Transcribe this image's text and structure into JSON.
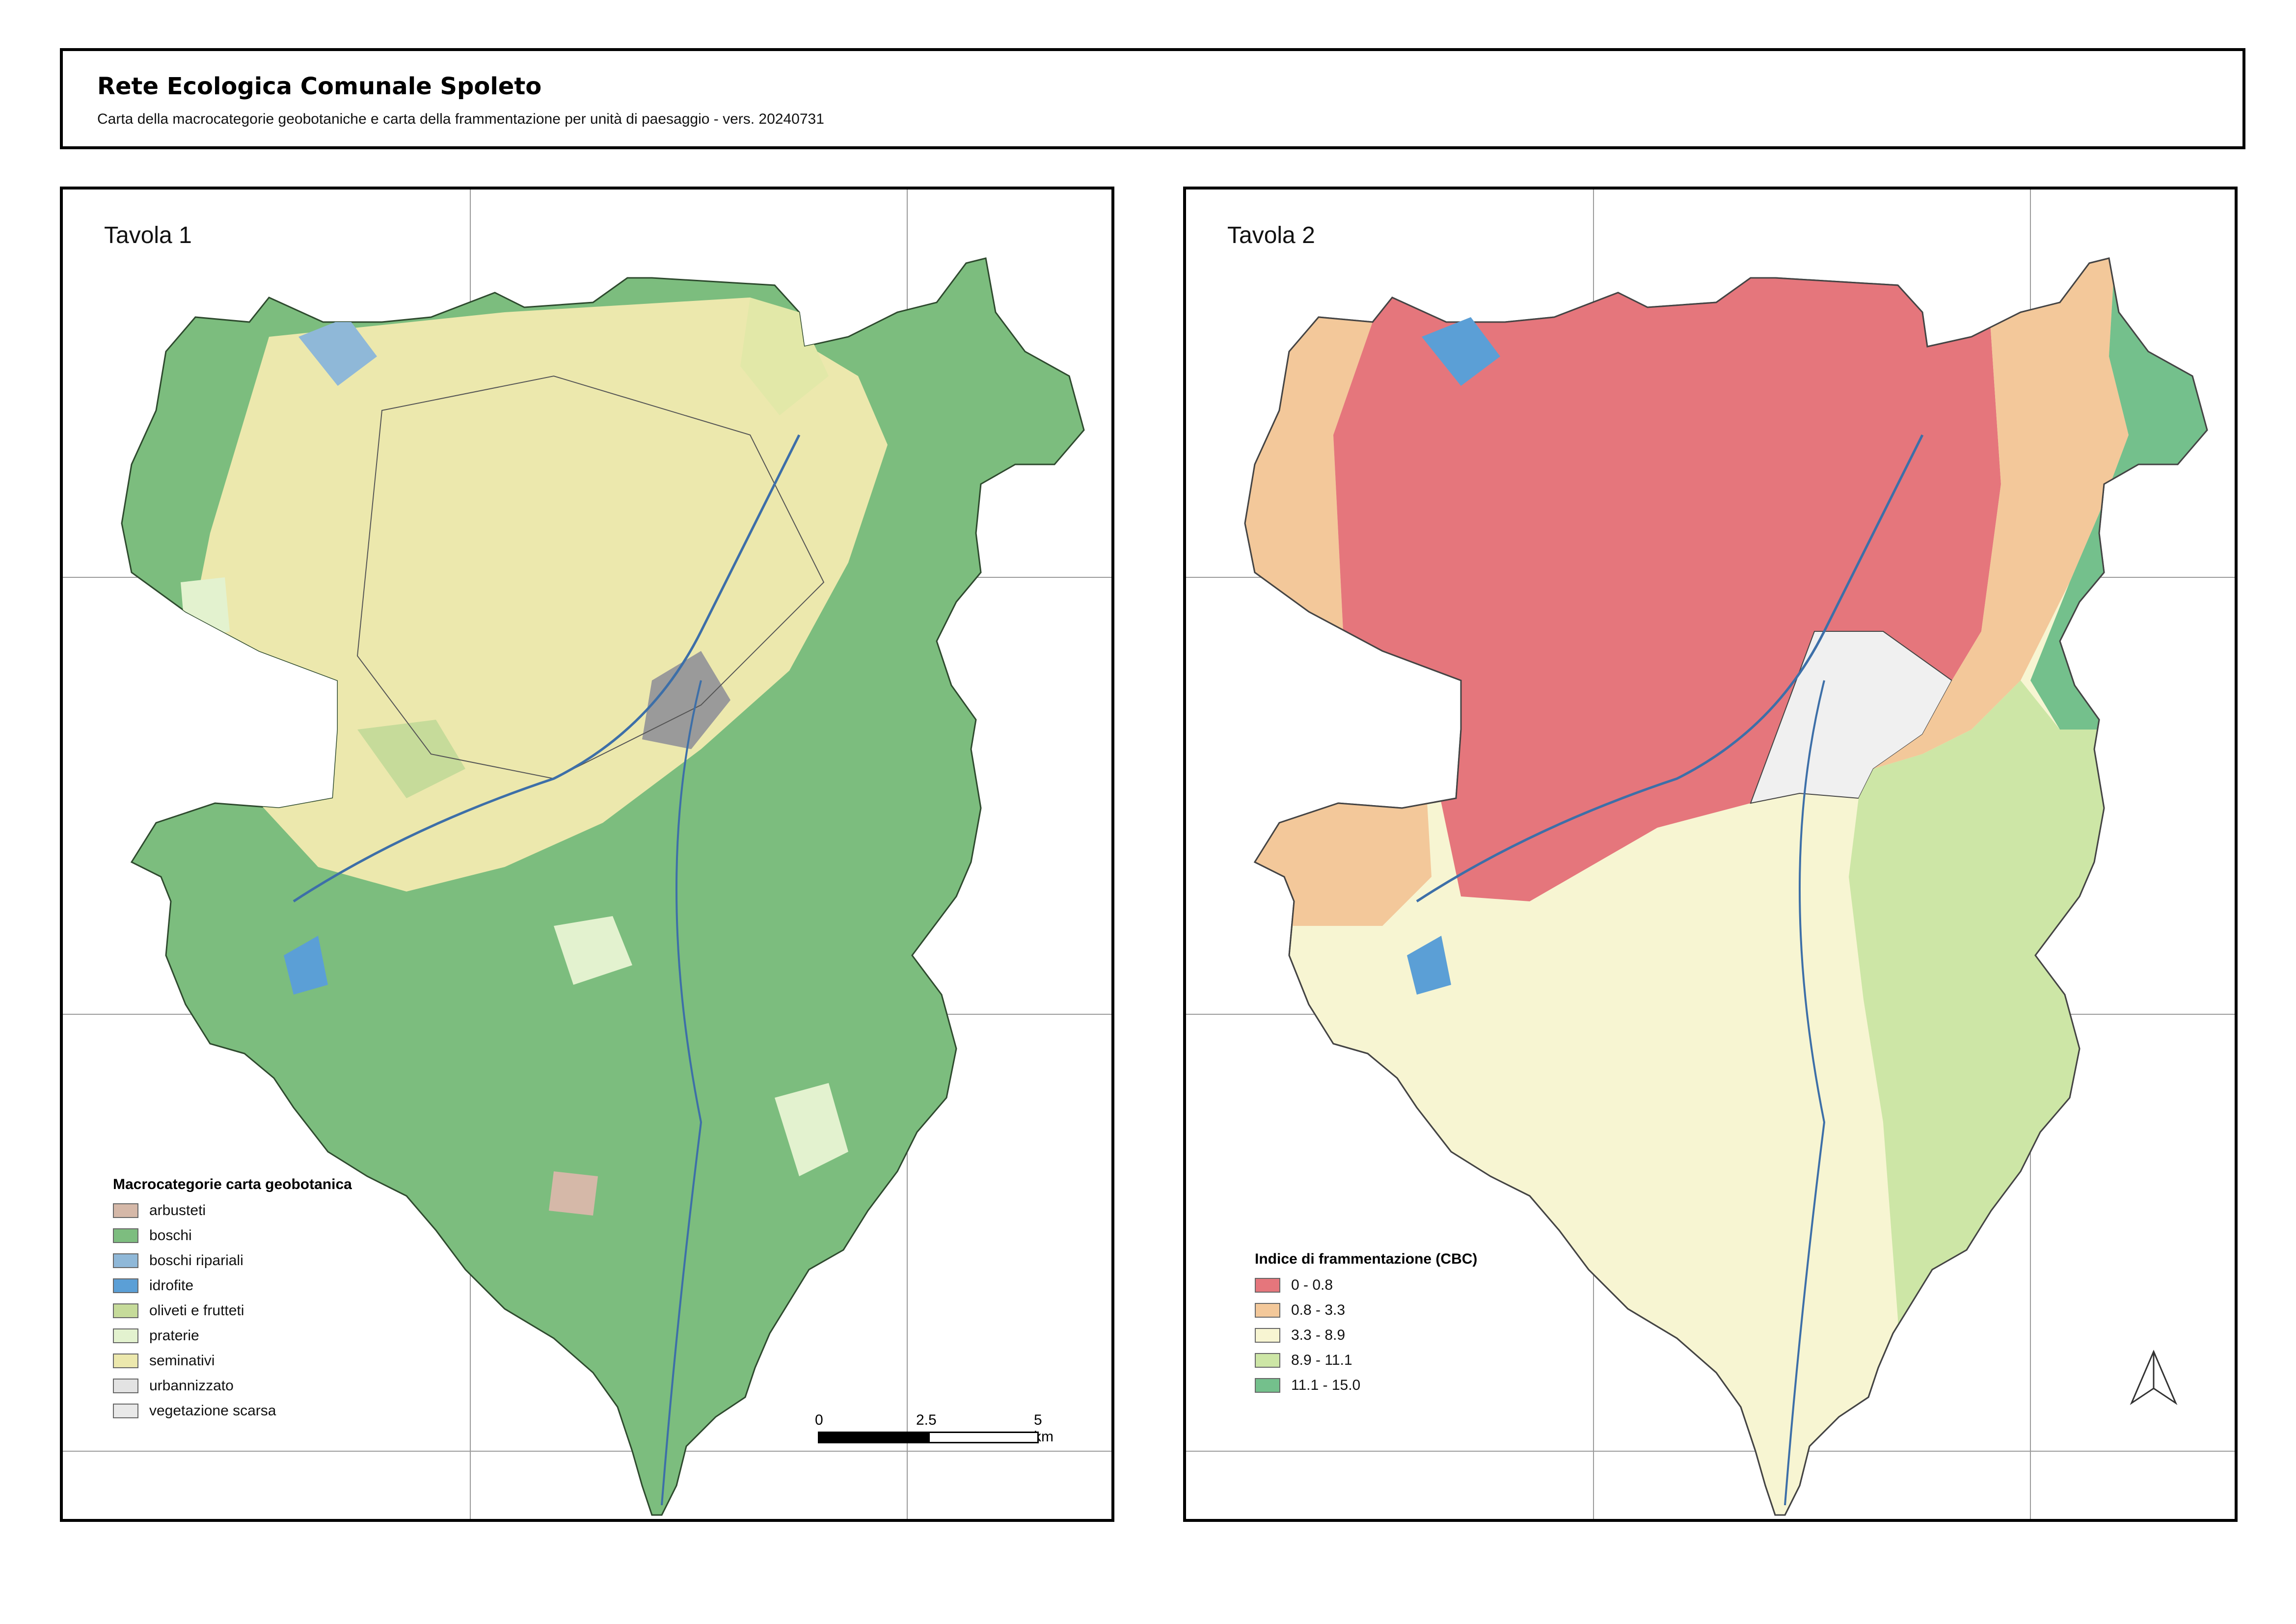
{
  "header": {
    "title": "Rete Ecologica Comunale Spoleto",
    "subtitle": "Carta della macrocategorie geobotaniche e carta della frammentazione per unità di paesaggio - vers.  20240731"
  },
  "panel1": {
    "label": "Tavola 1",
    "legend": {
      "title": "Macrocategorie carta geobotanica",
      "items": [
        {
          "label": "arbusteti",
          "color": "#d5b8a8"
        },
        {
          "label": "boschi",
          "color": "#7dbd7f"
        },
        {
          "label": "boschi ripariali",
          "color": "#8fb8d8"
        },
        {
          "label": "idrofite",
          "color": "#5b9fd6"
        },
        {
          "label": "oliveti e frutteti",
          "color": "#c6db9a"
        },
        {
          "label": "praterie",
          "color": "#e3f2cf"
        },
        {
          "label": "seminativi",
          "color": "#ece8ad"
        },
        {
          "label": "urbannizzato",
          "color": "#e3e3e3"
        },
        {
          "label": "vegetazione scarsa",
          "color": "#e9e9e9"
        }
      ]
    },
    "scalebar": {
      "labels": [
        "0",
        "2.5",
        "5 km"
      ]
    }
  },
  "panel2": {
    "label": "Tavola 2",
    "legend": {
      "title": "Indice di frammentazione (CBC)",
      "items": [
        {
          "label": "0 - 0.8",
          "color": "#e5767c"
        },
        {
          "label": "0.8 - 3.3",
          "color": "#f3c89a"
        },
        {
          "label": "3.3 - 8.9",
          "color": "#f7f5d2"
        },
        {
          "label": "8.9 - 11.1",
          "color": "#cde6a6"
        },
        {
          "label": "11.1 - 15.0",
          "color": "#74c08c"
        }
      ]
    },
    "north_arrow": "north-arrow-icon"
  }
}
